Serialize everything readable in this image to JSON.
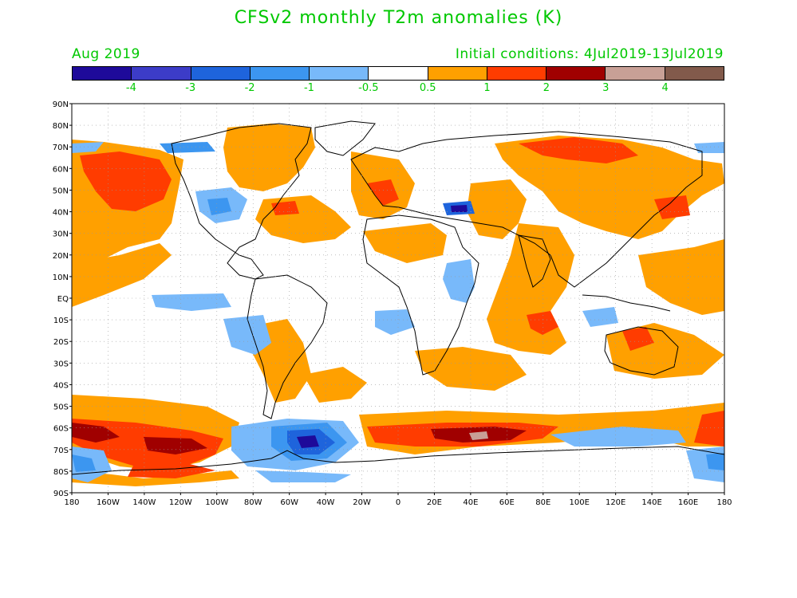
{
  "title": "CFSv2 monthly T2m anomalies (K)",
  "subtitle_left": "Aug 2019",
  "subtitle_right": "Initial conditions: 4Jul2019-13Jul2019",
  "colorbar": {
    "colors": [
      "#1e0a9a",
      "#3c3cc8",
      "#1e64dc",
      "#3c96f0",
      "#78b9fa",
      "#ffffff",
      "#ffa000",
      "#ff3c00",
      "#a00000",
      "#c8a096",
      "#825a4b"
    ],
    "labels": [
      "-4",
      "-3",
      "-2",
      "-1",
      "-0.5",
      "0.5",
      "1",
      "2",
      "3",
      "4"
    ]
  },
  "lat_labels": [
    "90N",
    "80N",
    "70N",
    "60N",
    "50N",
    "40N",
    "30N",
    "20N",
    "10N",
    "EQ",
    "10S",
    "20S",
    "30S",
    "40S",
    "50S",
    "60S",
    "70S",
    "80S",
    "90S"
  ],
  "lon_labels": [
    "180",
    "160W",
    "140W",
    "120W",
    "100W",
    "80W",
    "60W",
    "40W",
    "20W",
    "0",
    "20E",
    "40E",
    "60E",
    "80E",
    "100E",
    "120E",
    "140E",
    "160E",
    "180"
  ]
}
